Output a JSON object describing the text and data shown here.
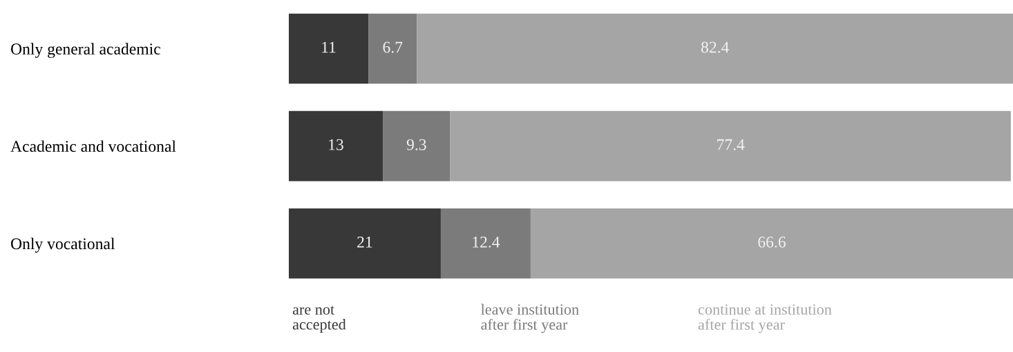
{
  "chart_data": {
    "type": "bar",
    "orientation": "horizontal",
    "stacked": true,
    "categories": [
      "Only general academic",
      "Academic and vocational",
      "Only vocational"
    ],
    "series": [
      {
        "name": "are not\naccepted",
        "color": "#383838",
        "values": [
          11,
          13,
          21
        ]
      },
      {
        "name": "leave institution\nafter first year",
        "color": "#7b7b7b",
        "values": [
          6.7,
          9.3,
          12.4
        ]
      },
      {
        "name": "continue at institution\nafter first year",
        "color": "#a5a5a5",
        "values": [
          82.4,
          77.4,
          66.6
        ]
      }
    ],
    "xlim": [
      0,
      100
    ],
    "data_labels": true,
    "legend": "bottom",
    "grid": false,
    "tick_labels": "y"
  }
}
